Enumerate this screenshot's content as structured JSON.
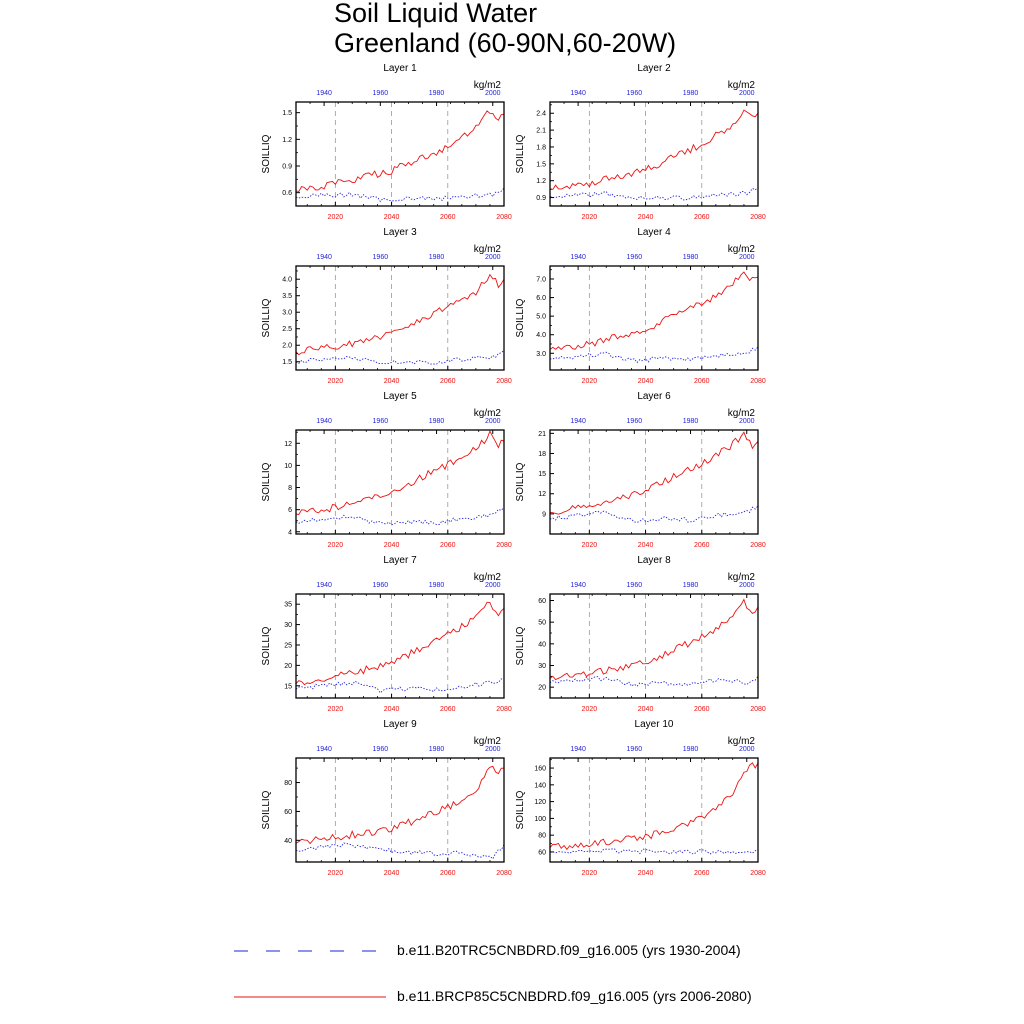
{
  "title": {
    "line1": "Soil Liquid Water",
    "line2": "Greenland (60-90N,60-20W)"
  },
  "colors": {
    "historical": "#2222dd",
    "future": "#ee1111",
    "gridline": "#999999"
  },
  "legend": {
    "historical_label": "b.e11.B20TRC5CNBDRD.f09_g16.005 (yrs 1930-2004)",
    "future_label": "b.e11.BRCP85C5CNBDRD.f09_g16.005 (yrs 2006-2080)"
  },
  "chart_data": [
    {
      "type": "line",
      "title": "Layer 1",
      "units": "kg/m2",
      "ylabel": "SOILLIQ",
      "x_bottom": [
        2006,
        2080
      ],
      "x_top": [
        1930,
        2004
      ],
      "ticks_bottom": [
        "2020",
        "2040",
        "2060",
        "2080"
      ],
      "ticks_top": [
        "1940",
        "1960",
        "1980",
        "2000"
      ],
      "ylim": [
        0.45,
        1.62
      ],
      "yticks": [
        "0.6",
        "0.9",
        "1.2",
        "1.5"
      ],
      "ytick_values": [
        0.6,
        0.9,
        1.2,
        1.5
      ],
      "series": [
        {
          "name": "b.e11.B20TRC5CNBDRD.f09_g16.005 (yrs 1930-2004)",
          "style": "dashed",
          "color": "blue",
          "x": [
            1930,
            1940,
            1950,
            1960,
            1970,
            1980,
            1990,
            2000,
            2004
          ],
          "values": [
            0.55,
            0.57,
            0.58,
            0.52,
            0.54,
            0.53,
            0.56,
            0.58,
            0.65
          ]
        },
        {
          "name": "b.e11.BRCP85C5CNBDRD.f09_g16.005 (yrs 2006-2080)",
          "style": "solid",
          "color": "red",
          "x": [
            2006,
            2020,
            2040,
            2050,
            2060,
            2070,
            2075,
            2078,
            2080
          ],
          "values": [
            0.62,
            0.7,
            0.85,
            0.98,
            1.1,
            1.32,
            1.52,
            1.42,
            1.48
          ]
        }
      ]
    },
    {
      "type": "line",
      "title": "Layer 2",
      "units": "kg/m2",
      "ylabel": "SOILLIQ",
      "x_bottom": [
        2006,
        2080
      ],
      "x_top": [
        1930,
        2004
      ],
      "ticks_bottom": [
        "2020",
        "2040",
        "2060",
        "2080"
      ],
      "ticks_top": [
        "1940",
        "1960",
        "1980",
        "2000"
      ],
      "ylim": [
        0.75,
        2.6
      ],
      "yticks": [
        "0.9",
        "1.2",
        "1.5",
        "1.8",
        "2.1",
        "2.4"
      ],
      "ytick_values": [
        0.9,
        1.2,
        1.5,
        1.8,
        2.1,
        2.4
      ],
      "series": [
        {
          "name": "b.e11.B20TRC5CNBDRD.f09_g16.005 (yrs 1930-2004)",
          "style": "dashed",
          "color": "blue",
          "x": [
            1930,
            1940,
            1950,
            1960,
            1970,
            1980,
            1990,
            2000,
            2004
          ],
          "values": [
            0.92,
            0.95,
            0.97,
            0.88,
            0.9,
            0.89,
            0.94,
            0.98,
            1.08
          ]
        },
        {
          "name": "b.e11.BRCP85C5CNBDRD.f09_g16.005 (yrs 2006-2080)",
          "style": "solid",
          "color": "red",
          "x": [
            2006,
            2020,
            2040,
            2050,
            2060,
            2070,
            2075,
            2078,
            2080
          ],
          "values": [
            1.05,
            1.15,
            1.4,
            1.62,
            1.85,
            2.15,
            2.45,
            2.3,
            2.4
          ]
        }
      ]
    },
    {
      "type": "line",
      "title": "Layer 3",
      "units": "kg/m2",
      "ylabel": "SOILLIQ",
      "x_bottom": [
        2006,
        2080
      ],
      "x_top": [
        1930,
        2004
      ],
      "ticks_bottom": [
        "2020",
        "2040",
        "2060",
        "2080"
      ],
      "ticks_top": [
        "1940",
        "1960",
        "1980",
        "2000"
      ],
      "ylim": [
        1.25,
        4.4
      ],
      "yticks": [
        "1.5",
        "2.0",
        "2.5",
        "3.0",
        "3.5",
        "4.0"
      ],
      "ytick_values": [
        1.5,
        2.0,
        2.5,
        3.0,
        3.5,
        4.0
      ],
      "series": [
        {
          "name": "b.e11.B20TRC5CNBDRD.f09_g16.005 (yrs 1930-2004)",
          "style": "dashed",
          "color": "blue",
          "x": [
            1930,
            1940,
            1950,
            1960,
            1970,
            1980,
            1990,
            2000,
            2004
          ],
          "values": [
            1.5,
            1.58,
            1.65,
            1.45,
            1.5,
            1.48,
            1.58,
            1.65,
            1.85
          ]
        },
        {
          "name": "b.e11.BRCP85C5CNBDRD.f09_g16.005 (yrs 2006-2080)",
          "style": "solid",
          "color": "red",
          "x": [
            2006,
            2020,
            2040,
            2050,
            2060,
            2070,
            2075,
            2078,
            2080
          ],
          "values": [
            1.8,
            1.95,
            2.35,
            2.75,
            3.15,
            3.6,
            4.15,
            3.85,
            4.0
          ]
        }
      ]
    },
    {
      "type": "line",
      "title": "Layer 4",
      "units": "kg/m2",
      "ylabel": "SOILLIQ",
      "x_bottom": [
        2006,
        2080
      ],
      "x_top": [
        1930,
        2004
      ],
      "ticks_bottom": [
        "2020",
        "2040",
        "2060",
        "2080"
      ],
      "ticks_top": [
        "1940",
        "1960",
        "1980",
        "2000"
      ],
      "ylim": [
        2.1,
        7.7
      ],
      "yticks": [
        "3.0",
        "4.0",
        "5.0",
        "6.0",
        "7.0"
      ],
      "ytick_values": [
        3.0,
        4.0,
        5.0,
        6.0,
        7.0
      ],
      "series": [
        {
          "name": "b.e11.B20TRC5CNBDRD.f09_g16.005 (yrs 1930-2004)",
          "style": "dashed",
          "color": "blue",
          "x": [
            1930,
            1940,
            1950,
            1960,
            1970,
            1980,
            1990,
            2000,
            2004
          ],
          "values": [
            2.7,
            2.85,
            2.95,
            2.6,
            2.7,
            2.65,
            2.85,
            3.0,
            3.35
          ]
        },
        {
          "name": "b.e11.BRCP85C5CNBDRD.f09_g16.005 (yrs 2006-2080)",
          "style": "solid",
          "color": "red",
          "x": [
            2006,
            2020,
            2040,
            2050,
            2060,
            2070,
            2075,
            2078,
            2080
          ],
          "values": [
            3.2,
            3.5,
            4.3,
            5.0,
            5.7,
            6.5,
            7.4,
            6.9,
            7.1
          ]
        }
      ]
    },
    {
      "type": "line",
      "title": "Layer 5",
      "units": "kg/m2",
      "ylabel": "SOILLIQ",
      "x_bottom": [
        2006,
        2080
      ],
      "x_top": [
        1930,
        2004
      ],
      "ticks_bottom": [
        "2020",
        "2040",
        "2060",
        "2080"
      ],
      "ticks_top": [
        "1940",
        "1960",
        "1980",
        "2000"
      ],
      "ylim": [
        3.8,
        13.2
      ],
      "yticks": [
        "4",
        "6",
        "8",
        "10",
        "12"
      ],
      "ytick_values": [
        4,
        6,
        8,
        10,
        12
      ],
      "series": [
        {
          "name": "b.e11.B20TRC5CNBDRD.f09_g16.005 (yrs 1930-2004)",
          "style": "dashed",
          "color": "blue",
          "x": [
            1930,
            1940,
            1950,
            1960,
            1970,
            1980,
            1990,
            2000,
            2004
          ],
          "values": [
            4.9,
            5.2,
            5.4,
            4.7,
            4.9,
            4.8,
            5.2,
            5.5,
            6.2
          ]
        },
        {
          "name": "b.e11.BRCP85C5CNBDRD.f09_g16.005 (yrs 2006-2080)",
          "style": "solid",
          "color": "red",
          "x": [
            2006,
            2020,
            2040,
            2050,
            2060,
            2070,
            2075,
            2078,
            2080
          ],
          "values": [
            5.6,
            6.2,
            7.5,
            8.8,
            10.1,
            11.5,
            12.8,
            11.8,
            12.2
          ]
        }
      ]
    },
    {
      "type": "line",
      "title": "Layer 6",
      "units": "kg/m2",
      "ylabel": "SOILLIQ",
      "x_bottom": [
        2006,
        2080
      ],
      "x_top": [
        1930,
        2004
      ],
      "ticks_bottom": [
        "2020",
        "2040",
        "2060",
        "2080"
      ],
      "ticks_top": [
        "1940",
        "1960",
        "1980",
        "2000"
      ],
      "ylim": [
        6.0,
        21.5
      ],
      "yticks": [
        "9",
        "12",
        "15",
        "18",
        "21"
      ],
      "ytick_values": [
        9,
        12,
        15,
        18,
        21
      ],
      "series": [
        {
          "name": "b.e11.B20TRC5CNBDRD.f09_g16.005 (yrs 1930-2004)",
          "style": "dashed",
          "color": "blue",
          "x": [
            1930,
            1940,
            1950,
            1960,
            1970,
            1980,
            1990,
            2000,
            2004
          ],
          "values": [
            8.2,
            8.8,
            9.2,
            7.9,
            8.3,
            8.1,
            8.8,
            9.3,
            10.2
          ]
        },
        {
          "name": "b.e11.BRCP85C5CNBDRD.f09_g16.005 (yrs 2006-2080)",
          "style": "solid",
          "color": "red",
          "x": [
            2006,
            2020,
            2040,
            2050,
            2060,
            2070,
            2075,
            2078,
            2080
          ],
          "values": [
            9.2,
            10.2,
            12.4,
            14.5,
            16.5,
            19.0,
            20.8,
            18.8,
            19.8
          ]
        }
      ]
    },
    {
      "type": "line",
      "title": "Layer 7",
      "units": "kg/m2",
      "ylabel": "SOILLIQ",
      "x_bottom": [
        2006,
        2080
      ],
      "x_top": [
        1930,
        2004
      ],
      "ticks_bottom": [
        "2020",
        "2040",
        "2060",
        "2080"
      ],
      "ticks_top": [
        "1940",
        "1960",
        "1980",
        "2000"
      ],
      "ylim": [
        12.0,
        37.5
      ],
      "yticks": [
        "15",
        "20",
        "25",
        "30",
        "35"
      ],
      "ytick_values": [
        15,
        20,
        25,
        30,
        35
      ],
      "series": [
        {
          "name": "b.e11.B20TRC5CNBDRD.f09_g16.005 (yrs 1930-2004)",
          "style": "dashed",
          "color": "blue",
          "x": [
            1930,
            1940,
            1950,
            1960,
            1970,
            1980,
            1990,
            2000,
            2004
          ],
          "values": [
            14.2,
            15.2,
            15.8,
            13.8,
            14.3,
            14.0,
            15.0,
            15.8,
            16.5
          ]
        },
        {
          "name": "b.e11.BRCP85C5CNBDRD.f09_g16.005 (yrs 2006-2080)",
          "style": "solid",
          "color": "red",
          "x": [
            2006,
            2020,
            2040,
            2050,
            2060,
            2070,
            2075,
            2078,
            2080
          ],
          "values": [
            15.5,
            17.2,
            20.5,
            24.0,
            27.5,
            31.5,
            35.5,
            32.0,
            34.0
          ]
        }
      ]
    },
    {
      "type": "line",
      "title": "Layer 8",
      "units": "kg/m2",
      "ylabel": "SOILLIQ",
      "x_bottom": [
        2006,
        2080
      ],
      "x_top": [
        1930,
        2004
      ],
      "ticks_bottom": [
        "2020",
        "2040",
        "2060",
        "2080"
      ],
      "ticks_top": [
        "1940",
        "1960",
        "1980",
        "2000"
      ],
      "ylim": [
        15.0,
        63.0
      ],
      "yticks": [
        "20",
        "30",
        "40",
        "50",
        "60"
      ],
      "ytick_values": [
        20,
        30,
        40,
        50,
        60
      ],
      "series": [
        {
          "name": "b.e11.B20TRC5CNBDRD.f09_g16.005 (yrs 1930-2004)",
          "style": "dashed",
          "color": "blue",
          "x": [
            1930,
            1940,
            1950,
            1960,
            1970,
            1980,
            1990,
            2000,
            2004
          ],
          "values": [
            22.0,
            23.5,
            24.0,
            21.0,
            22.0,
            21.5,
            23.5,
            22.0,
            25.0
          ]
        },
        {
          "name": "b.e11.BRCP85C5CNBDRD.f09_g16.005 (yrs 2006-2080)",
          "style": "solid",
          "color": "red",
          "x": [
            2006,
            2020,
            2040,
            2050,
            2060,
            2070,
            2075,
            2078,
            2080
          ],
          "values": [
            24.0,
            26.5,
            31.0,
            37.0,
            43.0,
            51.0,
            60.0,
            53.0,
            57.0
          ]
        }
      ]
    },
    {
      "type": "line",
      "title": "Layer 9",
      "units": "kg/m2",
      "ylabel": "SOILLIQ",
      "x_bottom": [
        2006,
        2080
      ],
      "x_top": [
        1930,
        2004
      ],
      "ticks_bottom": [
        "2020",
        "2040",
        "2060",
        "2080"
      ],
      "ticks_top": [
        "1940",
        "1960",
        "1980",
        "2000"
      ],
      "ylim": [
        25.0,
        97.0
      ],
      "yticks": [
        "40",
        "60",
        "80"
      ],
      "ytick_values": [
        40,
        60,
        80
      ],
      "series": [
        {
          "name": "b.e11.B20TRC5CNBDRD.f09_g16.005 (yrs 1930-2004)",
          "style": "dashed",
          "color": "blue",
          "x": [
            1930,
            1940,
            1950,
            1960,
            1970,
            1980,
            1990,
            2000,
            2004
          ],
          "values": [
            33.0,
            36.0,
            37.0,
            33.0,
            32.0,
            31.0,
            31.0,
            28.0,
            37.0
          ]
        },
        {
          "name": "b.e11.BRCP85C5CNBDRD.f09_g16.005 (yrs 2006-2080)",
          "style": "solid",
          "color": "red",
          "x": [
            2006,
            2020,
            2040,
            2050,
            2060,
            2070,
            2075,
            2078,
            2080
          ],
          "values": [
            38.0,
            42.0,
            48.0,
            55.0,
            63.0,
            75.0,
            92.0,
            85.0,
            90.0
          ]
        }
      ]
    },
    {
      "type": "line",
      "title": "Layer 10",
      "units": "kg/m2",
      "ylabel": "SOILLIQ",
      "x_bottom": [
        2006,
        2080
      ],
      "x_top": [
        1930,
        2004
      ],
      "ticks_bottom": [
        "2020",
        "2040",
        "2060",
        "2080"
      ],
      "ticks_top": [
        "1940",
        "1960",
        "1980",
        "2000"
      ],
      "ylim": [
        48.0,
        172.0
      ],
      "yticks": [
        "60",
        "80",
        "100",
        "120",
        "140",
        "160"
      ],
      "ytick_values": [
        60,
        80,
        100,
        120,
        140,
        160
      ],
      "series": [
        {
          "name": "b.e11.B20TRC5CNBDRD.f09_g16.005 (yrs 1930-2004)",
          "style": "dashed",
          "color": "blue",
          "x": [
            1930,
            1940,
            1950,
            1960,
            1970,
            1980,
            1990,
            2000,
            2004
          ],
          "values": [
            60.0,
            61.0,
            62.0,
            61.0,
            60.0,
            60.0,
            60.0,
            59.0,
            63.0
          ]
        },
        {
          "name": "b.e11.BRCP85C5CNBDRD.f09_g16.005 (yrs 2006-2080)",
          "style": "solid",
          "color": "red",
          "x": [
            2006,
            2020,
            2040,
            2050,
            2060,
            2070,
            2075,
            2078,
            2080
          ],
          "values": [
            65.0,
            70.0,
            78.0,
            88.0,
            100.0,
            125.0,
            155.0,
            162.0,
            166.0
          ]
        }
      ]
    }
  ]
}
